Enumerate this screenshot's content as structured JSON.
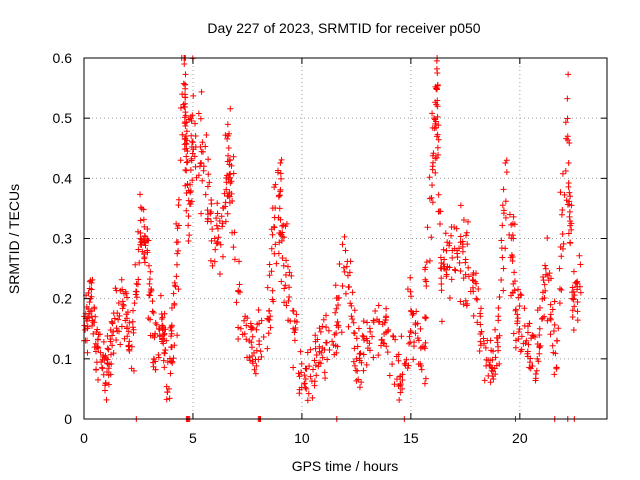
{
  "chart_data": {
    "type": "scatter",
    "title": "Day 227 of 2023, SRMTID for receiver p050",
    "xlabel": "GPS time / hours",
    "ylabel": "SRMTID / TECUs",
    "xlim": [
      0,
      24
    ],
    "ylim": [
      0,
      0.6
    ],
    "xticks": [
      0,
      5,
      10,
      15,
      20
    ],
    "yticks": [
      0,
      0.1,
      0.2,
      0.3,
      0.4,
      0.5,
      0.6
    ],
    "grid": true,
    "marker": "+",
    "color": "#ff0000",
    "summary_points": [
      {
        "x": 0.0,
        "y": 0.13
      },
      {
        "x": 0.3,
        "y": 0.2
      },
      {
        "x": 0.6,
        "y": 0.12
      },
      {
        "x": 1.0,
        "y": 0.06
      },
      {
        "x": 1.3,
        "y": 0.16
      },
      {
        "x": 1.8,
        "y": 0.19
      },
      {
        "x": 2.2,
        "y": 0.12
      },
      {
        "x": 2.6,
        "y": 0.33
      },
      {
        "x": 2.9,
        "y": 0.28
      },
      {
        "x": 3.2,
        "y": 0.1
      },
      {
        "x": 3.6,
        "y": 0.15
      },
      {
        "x": 3.9,
        "y": 0.05
      },
      {
        "x": 4.2,
        "y": 0.22
      },
      {
        "x": 4.6,
        "y": 0.59
      },
      {
        "x": 4.65,
        "y": 0.51
      },
      {
        "x": 4.8,
        "y": 0.38
      },
      {
        "x": 5.0,
        "y": 0.46
      },
      {
        "x": 5.5,
        "y": 0.42
      },
      {
        "x": 6.0,
        "y": 0.3
      },
      {
        "x": 6.5,
        "y": 0.36
      },
      {
        "x": 6.7,
        "y": 0.43
      },
      {
        "x": 7.2,
        "y": 0.15
      },
      {
        "x": 7.8,
        "y": 0.11
      },
      {
        "x": 8.5,
        "y": 0.18
      },
      {
        "x": 8.9,
        "y": 0.41
      },
      {
        "x": 9.1,
        "y": 0.31
      },
      {
        "x": 9.6,
        "y": 0.15
      },
      {
        "x": 10.2,
        "y": 0.05
      },
      {
        "x": 10.8,
        "y": 0.12
      },
      {
        "x": 11.5,
        "y": 0.14
      },
      {
        "x": 12.0,
        "y": 0.28
      },
      {
        "x": 12.5,
        "y": 0.1
      },
      {
        "x": 13.0,
        "y": 0.13
      },
      {
        "x": 13.8,
        "y": 0.16
      },
      {
        "x": 14.5,
        "y": 0.07
      },
      {
        "x": 15.0,
        "y": 0.18
      },
      {
        "x": 15.6,
        "y": 0.12
      },
      {
        "x": 16.0,
        "y": 0.42
      },
      {
        "x": 16.2,
        "y": 0.55
      },
      {
        "x": 16.4,
        "y": 0.25
      },
      {
        "x": 16.9,
        "y": 0.28
      },
      {
        "x": 17.5,
        "y": 0.26
      },
      {
        "x": 18.0,
        "y": 0.2
      },
      {
        "x": 18.6,
        "y": 0.09
      },
      {
        "x": 19.0,
        "y": 0.12
      },
      {
        "x": 19.4,
        "y": 0.43
      },
      {
        "x": 19.8,
        "y": 0.18
      },
      {
        "x": 20.3,
        "y": 0.13
      },
      {
        "x": 20.8,
        "y": 0.1
      },
      {
        "x": 21.2,
        "y": 0.24
      },
      {
        "x": 21.7,
        "y": 0.13
      },
      {
        "x": 22.2,
        "y": 0.47
      },
      {
        "x": 22.4,
        "y": 0.2
      },
      {
        "x": 22.8,
        "y": 0.21
      }
    ],
    "zero_points_x": [
      2.4,
      4.7,
      4.75,
      4.8,
      4.85,
      8.0,
      8.05,
      8.1,
      11.6,
      14.7,
      19.8,
      21.6,
      22.2,
      22.5
    ]
  }
}
